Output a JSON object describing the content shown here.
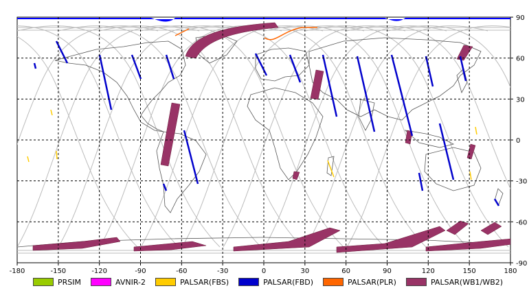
{
  "map": {
    "lon_ticks": [
      "-180",
      "-150",
      "-120",
      "-90",
      "-60",
      "-30",
      "0",
      "30",
      "60",
      "90",
      "120",
      "150",
      "180"
    ],
    "lat_ticks": [
      "90",
      "60",
      "30",
      "0",
      "-30",
      "-60",
      "-90"
    ],
    "lon_range": [
      -180,
      180
    ],
    "lat_range": [
      -90,
      90
    ],
    "grid": "dashed"
  },
  "legend": {
    "items": [
      {
        "label": "PRSIM",
        "color": "#99cc00"
      },
      {
        "label": "AVNIR-2",
        "color": "#ff00ff"
      },
      {
        "label": "PALSAR(FBS)",
        "color": "#ffcc00"
      },
      {
        "label": "PALSAR(FBD)",
        "color": "#0000cc"
      },
      {
        "label": "PALSAR(PLR)",
        "color": "#ff6600"
      },
      {
        "label": "PALSAR(WB1/WB2)",
        "color": "#993366"
      }
    ]
  }
}
